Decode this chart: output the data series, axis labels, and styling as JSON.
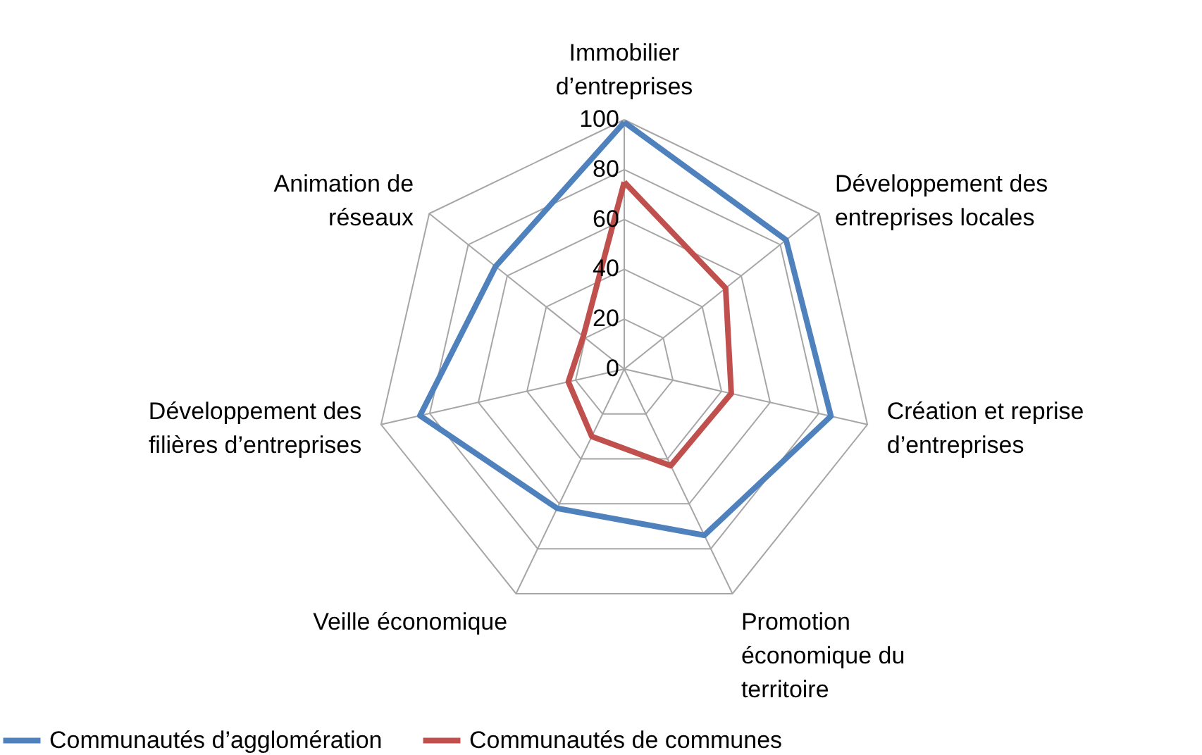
{
  "chart_data": {
    "type": "radar",
    "categories": [
      "Immobilier d’entreprises",
      "Développement des entreprises locales",
      "Création et reprise d’entreprises",
      "Promotion économique du territoire",
      "Veille économique",
      "Développement des filières d’entreprises",
      "Animation de réseaux"
    ],
    "series": [
      {
        "name": "Communautés d’agglomération",
        "color": "#4f81bd",
        "values": [
          99,
          83,
          85,
          74,
          62,
          84,
          66
        ]
      },
      {
        "name": "Communautés de communes",
        "color": "#c0504d",
        "values": [
          75,
          52,
          44,
          43,
          30,
          23,
          21
        ]
      }
    ],
    "ylim": [
      0,
      100
    ],
    "yticks": [
      0,
      20,
      40,
      60,
      80,
      100
    ],
    "grid": true,
    "legend": "bottom",
    "line_style": "solid",
    "marker": "none"
  }
}
